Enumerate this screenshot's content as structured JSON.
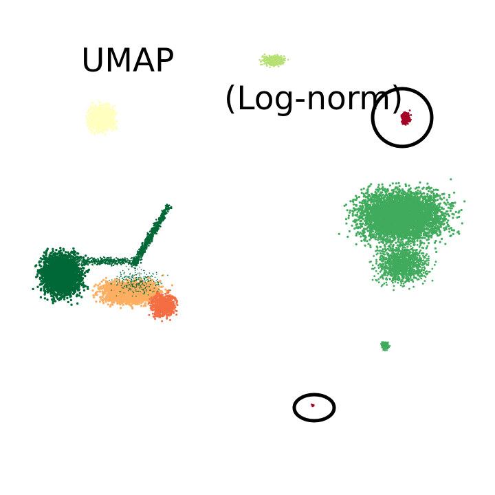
{
  "chart_data": {
    "type": "scatter",
    "title_left": "UMAP",
    "title_right": "(Log-norm)",
    "xlabel": "",
    "ylabel": "",
    "axes_visible": false,
    "grid": false,
    "legend": "none",
    "colors": {
      "dark_green": "#006837",
      "mid_green": "#41ab5d",
      "light_green": "#b7e075",
      "pale_yellow": "#ffffbf",
      "light_orange": "#fdae61",
      "orange_red": "#f46d43",
      "dark_red": "#a50026",
      "highlight_ring": "#000000"
    },
    "clusters": [
      {
        "id": "left-dark-green",
        "color": "#006837"
      },
      {
        "id": "left-light-orange",
        "color": "#fdae61"
      },
      {
        "id": "left-orange-red",
        "color": "#f46d43"
      },
      {
        "id": "upper-left-pale-yellow",
        "color": "#ffffbf"
      },
      {
        "id": "top-light-green",
        "color": "#b7e075"
      },
      {
        "id": "right-mid-green",
        "color": "#41ab5d"
      },
      {
        "id": "small-mid-green",
        "color": "#41ab5d"
      },
      {
        "id": "dark-red-upper",
        "color": "#a50026"
      },
      {
        "id": "dark-red-lower",
        "color": "#a50026"
      }
    ],
    "annotations": [
      "circle around dark-red-upper cluster",
      "ellipse around dark-red-lower cluster"
    ]
  }
}
